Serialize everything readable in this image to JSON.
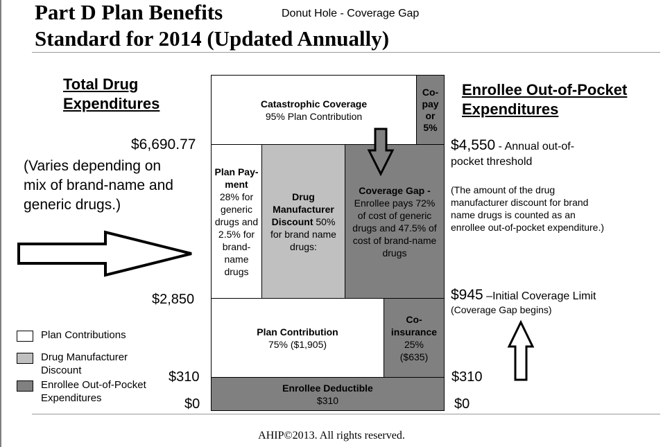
{
  "header": {
    "title_line1": "Part D Plan Benefits",
    "title_line2": "Standard for 2014 (Updated Annually)",
    "subtitle": "Donut Hole - Coverage Gap"
  },
  "left": {
    "heading_line1": "Total Drug",
    "heading_line2": "Expenditures",
    "amount_top": "$6,690.77",
    "varies_line1": "(Varies depending on",
    "varies_line2": "mix of brand-name and",
    "varies_line3": "generic drugs.)",
    "amount_2850": "$2,850",
    "amount_310": "$310",
    "amount_0": "$0"
  },
  "right": {
    "heading_line1": "Enrollee Out-of-Pocket",
    "heading_line2": "Expenditures",
    "threshold_amount": "$4,550",
    "threshold_text_1": " - Annual out-of-",
    "threshold_text_2": "pocket threshold",
    "note_1": "(The amount of the drug",
    "note_2": "manufacturer discount for brand",
    "note_3": "name drugs is counted as an",
    "note_4": "enrollee out-of-pocket expenditure.)",
    "icl_amount": "$945",
    "icl_text": " –Initial Coverage Limit",
    "icl_sub": "(Coverage Gap begins)",
    "amount_310": "$310",
    "amount_0": "$0"
  },
  "blocks": {
    "catastrophic_title": "Catastrophic Coverage",
    "catastrophic_sub": "95% Plan Contribution",
    "copay_1": "Co-",
    "copay_2": "pay",
    "copay_3": "or",
    "copay_4": "5%",
    "planpay_1": "Plan Pay-",
    "planpay_2": "ment",
    "planpay_3": "28% for",
    "planpay_4": "generic",
    "planpay_5": "drugs and",
    "planpay_6": "2.5% for",
    "planpay_7": "brand-",
    "planpay_8": "name",
    "planpay_9": "drugs",
    "mfr_1": "Drug",
    "mfr_2": "Manufacturer",
    "mfr_3b": "Discount",
    "mfr_3": " 50%",
    "mfr_4": "for brand name",
    "mfr_5": "drugs:",
    "gap_1": "Coverage Gap -",
    "gap_2": "Enrollee pays 72%",
    "gap_3": "of cost of generic",
    "gap_4": "drugs and 47.5% of",
    "gap_5": "cost of brand-name",
    "gap_6": "drugs",
    "plancontrib_title": "Plan Contribution",
    "plancontrib_sub": "75%  ($1,905)",
    "coins_1": "Co-",
    "coins_2": "insurance",
    "coins_3": "25%",
    "coins_4": "($635)",
    "deductible_title": "Enrollee Deductible",
    "deductible_sub": "$310"
  },
  "legend": {
    "item1": "Plan Contributions",
    "item2_1": "Drug Manufacturer",
    "item2_2": "Discount",
    "item3_1": "Enrollee Out-of-Pocket",
    "item3_2": "Expenditures"
  },
  "footer": "AHIP©2013.  All rights reserved.",
  "colors": {
    "white": "#ffffff",
    "light_gray": "#c0c0c0",
    "dark_gray": "#808080"
  }
}
